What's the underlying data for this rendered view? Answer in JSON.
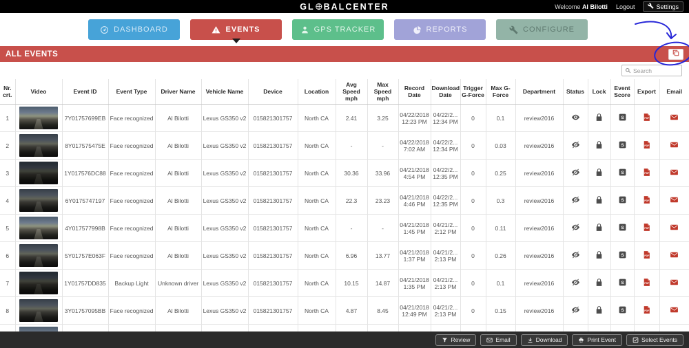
{
  "topbar": {
    "logo_pre": "GL",
    "logo_post": "BALCENTER",
    "welcome": "Welcome",
    "user": "Al Bilotti",
    "logout": "Logout",
    "settings": "Settings"
  },
  "nav": [
    {
      "label": "DASHBOARD",
      "icon": "dashboard-gauge-icon",
      "color": "#47a3d8",
      "text": "#d6eaf7",
      "active": false
    },
    {
      "label": "EVENTS",
      "icon": "events-warning-icon",
      "color": "#c8504b",
      "text": "#ffffff",
      "active": true
    },
    {
      "label": "GPS TRACKER",
      "icon": "gps-person-icon",
      "color": "#5dbf8b",
      "text": "#e2f5ea",
      "active": false
    },
    {
      "label": "REPORTS",
      "icon": "reports-pie-icon",
      "color": "#a1a3d8",
      "text": "#f0f0fa",
      "active": false
    },
    {
      "label": "CONFIGURE",
      "icon": "configure-wrench-icon",
      "color": "#93b4a7",
      "text": "#5f7a70",
      "active": false
    }
  ],
  "section": {
    "title": "ALL EVENTS"
  },
  "search": {
    "placeholder": "Search"
  },
  "accent_color": "#c8504b",
  "table": {
    "headers": [
      "Nr. crt.",
      "Video",
      "Event ID",
      "Event Type",
      "Driver Name",
      "Vehicle Name",
      "Device",
      "Location",
      "Avg Speed mph",
      "Max Speed mph",
      "Record Date",
      "Download Date",
      "Trigger G-Force",
      "Max G-Force",
      "Department",
      "Status",
      "Lock",
      "Event Score",
      "Export",
      "Email"
    ],
    "rows": [
      {
        "nr": "1",
        "event_id": "7Y01757699EB",
        "event_type": "Face recognized",
        "driver": "Al Bilotti",
        "vehicle": "Lexus GS350 v2",
        "device": "015821301757",
        "location": "North CA",
        "avg_speed": "2.41",
        "max_speed": "3.25",
        "record_date": "04/22/2018\n12:23 PM",
        "download_date": "04/22/2...\n12:34 PM",
        "trigger_g": "0",
        "max_g": "0.1",
        "department": "review2016",
        "status": "visible",
        "partial": false
      },
      {
        "nr": "2",
        "event_id": "8Y017575475E",
        "event_type": "Face recognized",
        "driver": "Al Bilotti",
        "vehicle": "Lexus GS350 v2",
        "device": "015821301757",
        "location": "North CA",
        "avg_speed": "-",
        "max_speed": "-",
        "record_date": "04/22/2018\n7:02 AM",
        "download_date": "04/22/2...\n12:34 PM",
        "trigger_g": "0",
        "max_g": "0.03",
        "department": "review2016",
        "status": "hidden",
        "partial": false
      },
      {
        "nr": "3",
        "event_id": "1Y017576DC88",
        "event_type": "Face recognized",
        "driver": "Al Bilotti",
        "vehicle": "Lexus GS350 v2",
        "device": "015821301757",
        "location": "North CA",
        "avg_speed": "30.36",
        "max_speed": "33.96",
        "record_date": "04/21/2018\n4:54 PM",
        "download_date": "04/22/2...\n12:35 PM",
        "trigger_g": "0",
        "max_g": "0.25",
        "department": "review2016",
        "status": "hidden",
        "partial": false
      },
      {
        "nr": "4",
        "event_id": "6Y0175747197",
        "event_type": "Face recognized",
        "driver": "Al Bilotti",
        "vehicle": "Lexus GS350 v2",
        "device": "015821301757",
        "location": "North CA",
        "avg_speed": "22.3",
        "max_speed": "23.23",
        "record_date": "04/21/2018\n4:46 PM",
        "download_date": "04/22/2...\n12:35 PM",
        "trigger_g": "0",
        "max_g": "0.3",
        "department": "review2016",
        "status": "hidden",
        "partial": false
      },
      {
        "nr": "5",
        "event_id": "4Y017577998B",
        "event_type": "Face recognized",
        "driver": "Al Bilotti",
        "vehicle": "Lexus GS350 v2",
        "device": "015821301757",
        "location": "North CA",
        "avg_speed": "-",
        "max_speed": "-",
        "record_date": "04/21/2018\n1:45 PM",
        "download_date": "04/21/2...\n2:12 PM",
        "trigger_g": "0",
        "max_g": "0.11",
        "department": "review2016",
        "status": "hidden",
        "partial": false
      },
      {
        "nr": "6",
        "event_id": "5Y01757E063F",
        "event_type": "Face recognized",
        "driver": "Al Bilotti",
        "vehicle": "Lexus GS350 v2",
        "device": "015821301757",
        "location": "North CA",
        "avg_speed": "6.96",
        "max_speed": "13.77",
        "record_date": "04/21/2018\n1:37 PM",
        "download_date": "04/21/2...\n2:13 PM",
        "trigger_g": "0",
        "max_g": "0.26",
        "department": "review2016",
        "status": "hidden",
        "partial": false
      },
      {
        "nr": "7",
        "event_id": "1Y01757DD835",
        "event_type": "Backup Light",
        "driver": "Unknown driver",
        "vehicle": "Lexus GS350 v2",
        "device": "015821301757",
        "location": "North CA",
        "avg_speed": "10.15",
        "max_speed": "14.87",
        "record_date": "04/21/2018\n1:35 PM",
        "download_date": "04/21/2...\n2:13 PM",
        "trigger_g": "0",
        "max_g": "0.1",
        "department": "review2016",
        "status": "hidden",
        "partial": false
      },
      {
        "nr": "8",
        "event_id": "3Y01757095BB",
        "event_type": "Face recognized",
        "driver": "Al Bilotti",
        "vehicle": "Lexus GS350 v2",
        "device": "015821301757",
        "location": "North CA",
        "avg_speed": "4.87",
        "max_speed": "8.45",
        "record_date": "04/21/2018\n12:49 PM",
        "download_date": "04/21/2...\n2:13 PM",
        "trigger_g": "0",
        "max_g": "0.15",
        "department": "review2016",
        "status": "hidden",
        "partial": false
      },
      {
        "nr": "9",
        "event_id": "",
        "event_type": "",
        "driver": "",
        "vehicle": "",
        "device": "",
        "location": "",
        "avg_speed": "",
        "max_speed": "",
        "record_date": "",
        "download_date": "",
        "trigger_g": "",
        "max_g": "",
        "department": "",
        "status": "",
        "partial": true
      }
    ]
  },
  "footer": {
    "buttons": [
      {
        "label": "Review",
        "icon": "funnel-icon"
      },
      {
        "label": "Email",
        "icon": "envelope-outline-icon"
      },
      {
        "label": "Download",
        "icon": "download-arrow-icon"
      },
      {
        "label": "Print Event",
        "icon": "printer-icon"
      },
      {
        "label": "Select Events",
        "icon": "select-check-icon"
      }
    ]
  }
}
